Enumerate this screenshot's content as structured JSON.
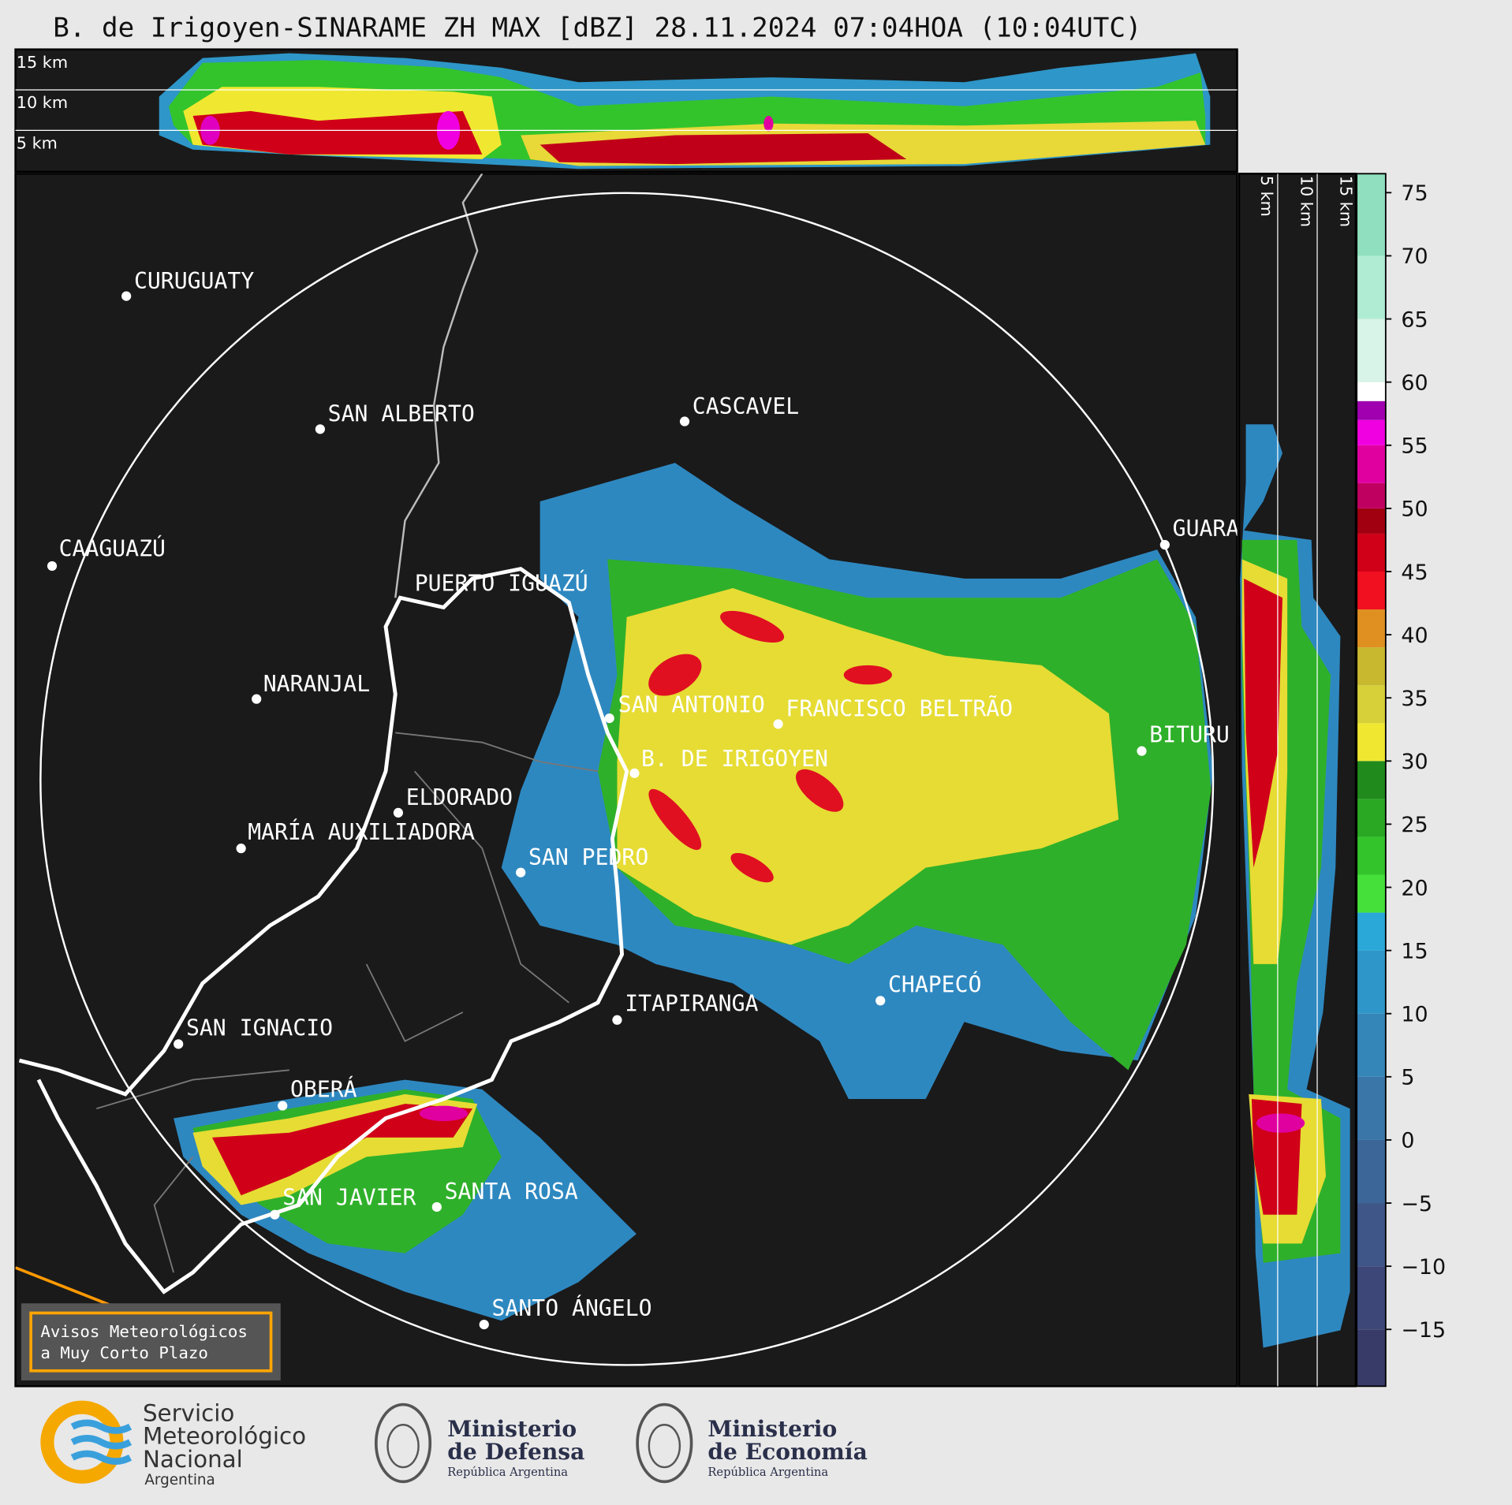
{
  "title": "B. de Irigoyen-SINARAME ZH MAX [dBZ] 28.11.2024 07:04HOA (10:04UTC)",
  "height_labels": [
    "15 km",
    "10 km",
    "5 km"
  ],
  "cities": [
    {
      "name": "CURUGUATY"
    },
    {
      "name": "SAN ALBERTO"
    },
    {
      "name": "CASCAVEL"
    },
    {
      "name": "CAAGUAZÚ"
    },
    {
      "name": "PUERTO IGUAZÚ"
    },
    {
      "name": "GUARA"
    },
    {
      "name": "NARANJAL"
    },
    {
      "name": "SAN ANTONIO"
    },
    {
      "name": "FRANCISCO BELTRÃO"
    },
    {
      "name": "BITURU"
    },
    {
      "name": "B. DE IRIGOYEN"
    },
    {
      "name": "ELDORADO"
    },
    {
      "name": "MARÍA AUXILIADORA"
    },
    {
      "name": "SAN PEDRO"
    },
    {
      "name": "ITAPIRANGA"
    },
    {
      "name": "CHAPECÓ"
    },
    {
      "name": "SAN IGNACIO"
    },
    {
      "name": "OBERÁ"
    },
    {
      "name": "SAN JAVIER"
    },
    {
      "name": "SANTA ROSA"
    },
    {
      "name": "SANTO ÁNGELO"
    }
  ],
  "colorbar": {
    "range": [
      -19.5,
      76.5
    ],
    "ticks": [
      75,
      70,
      65,
      60,
      55,
      50,
      45,
      40,
      35,
      30,
      25,
      20,
      15,
      10,
      5,
      0,
      {
        "value": -5,
        "label": "−5"
      },
      {
        "value": -10,
        "label": "−10"
      },
      {
        "value": -15,
        "label": "−15"
      }
    ],
    "bands": [
      {
        "start": -19.5,
        "color": "#383a67"
      },
      {
        "start": -15,
        "color": "#3d4878"
      },
      {
        "start": -10,
        "color": "#3e5688"
      },
      {
        "start": -5,
        "color": "#3d6698"
      },
      {
        "start": 0,
        "color": "#3a76a8"
      },
      {
        "start": 5,
        "color": "#3586b8"
      },
      {
        "start": 10,
        "color": "#2e96c8"
      },
      {
        "start": 15,
        "color": "#2aa8d8"
      },
      {
        "start": 18,
        "color": "#45e03a"
      },
      {
        "start": 21,
        "color": "#33c42c"
      },
      {
        "start": 24,
        "color": "#2aa824"
      },
      {
        "start": 27,
        "color": "#218a1c"
      },
      {
        "start": 30,
        "color": "#f0e830"
      },
      {
        "start": 33,
        "color": "#d8d038"
      },
      {
        "start": 36,
        "color": "#c8b830"
      },
      {
        "start": 39,
        "color": "#e09020"
      },
      {
        "start": 42,
        "color": "#f01020"
      },
      {
        "start": 45,
        "color": "#d00018"
      },
      {
        "start": 48,
        "color": "#a00010"
      },
      {
        "start": 50,
        "color": "#c00060"
      },
      {
        "start": 52,
        "color": "#e000a0"
      },
      {
        "start": 55,
        "color": "#f000e0"
      },
      {
        "start": 57,
        "color": "#a000b0"
      },
      {
        "start": 58.5,
        "color": "#ffffff"
      },
      {
        "start": 60,
        "color": "#d8f4e8"
      },
      {
        "start": 65,
        "color": "#b0ecd4"
      },
      {
        "start": 70,
        "color": "#90e0c0"
      }
    ]
  },
  "notice": {
    "lines": [
      "Avisos Meteorológicos",
      "a Muy Corto Plazo"
    ]
  },
  "logos": [
    {
      "lines": [
        "Servicio",
        "Meteorológico",
        "Nacional",
        "Argentina"
      ]
    },
    {
      "lines": [
        "Ministerio",
        "de Defensa",
        "República Argentina"
      ]
    },
    {
      "lines": [
        "Ministerio",
        "de Economía",
        "República Argentina"
      ]
    }
  ]
}
